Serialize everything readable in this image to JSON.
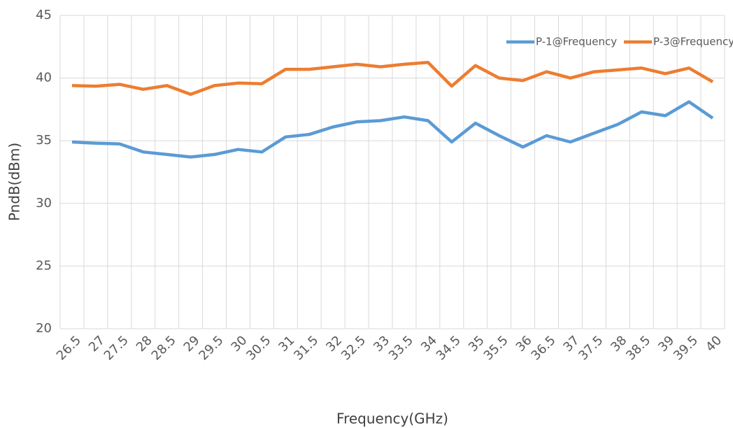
{
  "chart_data": {
    "type": "line",
    "x_label": "Frequency(GHz)",
    "y_label": "PndB(dBm)",
    "categories": [
      "26.5",
      "27",
      "27.5",
      "28",
      "28.5",
      "29",
      "29.5",
      "30",
      "30.5",
      "31",
      "31.5",
      "32",
      "32.5",
      "33",
      "33.5",
      "34",
      "34.5",
      "35",
      "35.5",
      "36",
      "36.5",
      "37",
      "37.5",
      "38",
      "38.5",
      "39",
      "39.5",
      "40"
    ],
    "series": [
      {
        "name": "P-1@Frequency",
        "color": "#5b9bd5",
        "values": [
          34.9,
          34.8,
          34.75,
          34.1,
          33.9,
          33.7,
          33.9,
          34.3,
          34.1,
          35.3,
          35.5,
          36.1,
          36.5,
          36.6,
          36.9,
          36.6,
          34.9,
          36.4,
          35.4,
          34.5,
          35.4,
          34.9,
          35.6,
          36.3,
          37.3,
          37.0,
          38.1,
          36.8
        ]
      },
      {
        "name": "P-3@Frequency",
        "color": "#ed7d31",
        "values": [
          39.4,
          39.35,
          39.5,
          39.1,
          39.4,
          38.7,
          39.4,
          39.6,
          39.55,
          40.7,
          40.7,
          40.9,
          41.1,
          40.9,
          41.1,
          41.25,
          39.35,
          41.0,
          40.0,
          39.8,
          40.5,
          40.0,
          40.5,
          40.65,
          40.8,
          40.35,
          40.8,
          39.7
        ]
      }
    ],
    "ylim": [
      20,
      45
    ],
    "yticks": [
      20,
      25,
      30,
      35,
      40,
      45
    ],
    "grid": true,
    "legend": "top-right"
  }
}
